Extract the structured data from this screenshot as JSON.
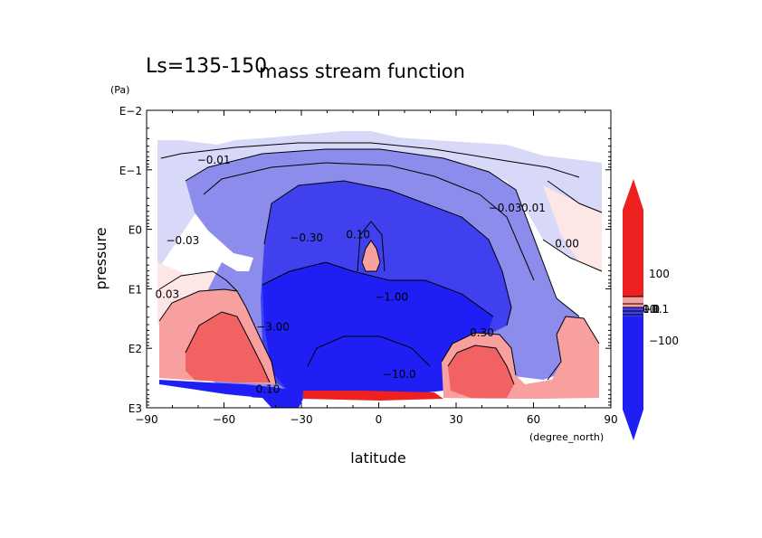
{
  "chart_data": {
    "type": "heatmap",
    "title": "mass stream function",
    "subtitle": "Ls=135-150",
    "xlabel": "latitude",
    "xunit": "(degree_north)",
    "ylabel": "pressure",
    "yunit": "(Pa)",
    "xlim": [
      -90,
      90
    ],
    "ylim_log10_pa": [
      -2,
      3
    ],
    "y_scale": "log",
    "y_direction": "decreasing-upward",
    "x_ticks": [
      "−90",
      "−60",
      "−30",
      "0",
      "30",
      "60",
      "90"
    ],
    "x_tick_values": [
      -90,
      -60,
      -30,
      0,
      30,
      60,
      90
    ],
    "y_ticks": [
      "E−2",
      "E−1",
      "E0",
      "E1",
      "E2",
      "E3"
    ],
    "y_tick_values": [
      -2,
      -1,
      0,
      1,
      2,
      3
    ],
    "colorbar": {
      "labels": [
        "100",
        "−100"
      ],
      "label_values": [
        100,
        -100
      ],
      "overlapping_labels": [
        "0.1",
        "1.0",
        "10",
        "−0.1"
      ],
      "colors": {
        "neg_strong": "#1f1ff5",
        "neg_mid": "#4040ee",
        "neg_weak": "#8c8ced",
        "neg_faint": "#d8d8f8",
        "pos_faint": "#fde6e6",
        "pos_mid": "#f8a0a0",
        "pos_strong": "#f26262",
        "pos_max": "#ee2020"
      }
    },
    "contour_labels": [
      {
        "text": "−0.01",
        "lat": -64,
        "logp": -1.1
      },
      {
        "text": "−0.03",
        "lat": -76,
        "logp": 0.25
      },
      {
        "text": "−0.30",
        "lat": -28,
        "logp": 0.2
      },
      {
        "text": "0.10",
        "lat": -8,
        "logp": 0.15
      },
      {
        "text": "−1.00",
        "lat": 5,
        "logp": 1.2
      },
      {
        "text": "−3.00",
        "lat": -41,
        "logp": 1.7
      },
      {
        "text": "−10.0",
        "lat": 8,
        "logp": 2.5
      },
      {
        "text": "−0.03",
        "lat": 49,
        "logp": -0.3
      },
      {
        "text": "0.01",
        "lat": 60,
        "logp": -0.3
      },
      {
        "text": "0.00",
        "lat": 73,
        "logp": 0.3
      },
      {
        "text": "0.03",
        "lat": -82,
        "logp": 1.15
      },
      {
        "text": "0.30",
        "lat": 40,
        "logp": 1.8
      },
      {
        "text": "0.10",
        "lat": -43,
        "logp": 2.75
      }
    ]
  }
}
